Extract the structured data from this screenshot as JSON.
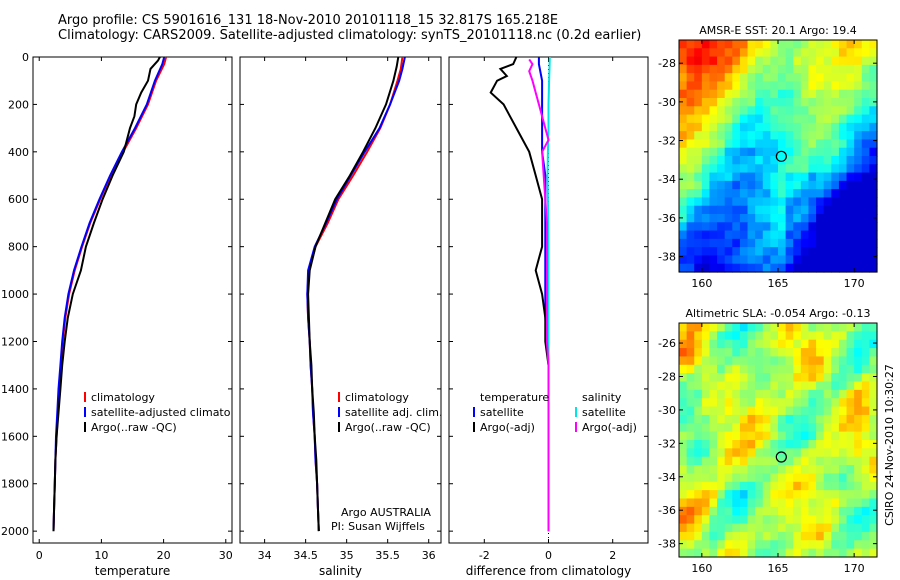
{
  "header": {
    "line1": "Argo profile: CS 5901616_131 18-Nov-2010 20101118_15 32.817S 165.218E",
    "line2": "Climatology: CARS2009. Satellite-adjusted climatology: synTS_20101118.nc (0.2d earlier)"
  },
  "side_label": "CSIRO 24-Nov-2010 10:30:27",
  "chart_data": [
    {
      "type": "line",
      "xlabel": "temperature",
      "xlim": [
        -1,
        31
      ],
      "ylim": [
        0,
        2050
      ],
      "xticks": [
        0,
        10,
        20,
        30
      ],
      "yticks": [
        0,
        200,
        400,
        600,
        800,
        1000,
        1200,
        1400,
        1600,
        1800,
        2000
      ],
      "legend": [
        "climatology",
        "satellite-adjusted climatology",
        "Argo(..raw -QC)"
      ],
      "series": [
        {
          "name": "climatology",
          "color": "#ff0000",
          "points": [
            [
              20.4,
              0
            ],
            [
              20.1,
              30
            ],
            [
              18.8,
              100
            ],
            [
              17.5,
              200
            ],
            [
              15.6,
              300
            ],
            [
              13.5,
              400
            ],
            [
              11.5,
              500
            ],
            [
              9.8,
              600
            ],
            [
              8.2,
              700
            ],
            [
              6.9,
              800
            ],
            [
              5.7,
              900
            ],
            [
              4.8,
              1000
            ],
            [
              4.2,
              1100
            ],
            [
              3.8,
              1200
            ],
            [
              3.5,
              1300
            ],
            [
              3.2,
              1400
            ],
            [
              3.0,
              1500
            ],
            [
              2.8,
              1600
            ],
            [
              2.6,
              1700
            ],
            [
              2.5,
              1800
            ],
            [
              2.4,
              1900
            ],
            [
              2.3,
              2000
            ]
          ]
        },
        {
          "name": "satellite-adjusted climatology",
          "color": "#0000ff",
          "points": [
            [
              20.1,
              0
            ],
            [
              19.8,
              30
            ],
            [
              18.6,
              100
            ],
            [
              17.3,
              200
            ],
            [
              15.4,
              300
            ],
            [
              13.3,
              400
            ],
            [
              11.4,
              500
            ],
            [
              9.7,
              600
            ],
            [
              8.1,
              700
            ],
            [
              6.8,
              800
            ],
            [
              5.6,
              900
            ],
            [
              4.7,
              1000
            ],
            [
              4.1,
              1100
            ],
            [
              3.7,
              1200
            ],
            [
              3.4,
              1300
            ],
            [
              3.1,
              1400
            ],
            [
              2.9,
              1500
            ],
            [
              2.7,
              1600
            ],
            [
              2.6,
              1700
            ],
            [
              2.5,
              1800
            ],
            [
              2.4,
              1900
            ],
            [
              2.3,
              2000
            ]
          ]
        },
        {
          "name": "Argo(..raw -QC)",
          "color": "#000000",
          "points": [
            [
              19.4,
              0
            ],
            [
              19.1,
              15
            ],
            [
              17.9,
              50
            ],
            [
              17.5,
              100
            ],
            [
              16.4,
              150
            ],
            [
              15.6,
              200
            ],
            [
              15.3,
              250
            ],
            [
              14.6,
              300
            ],
            [
              13.6,
              400
            ],
            [
              11.8,
              500
            ],
            [
              10.2,
              600
            ],
            [
              8.8,
              700
            ],
            [
              7.5,
              800
            ],
            [
              6.7,
              900
            ],
            [
              5.4,
              1000
            ],
            [
              4.6,
              1100
            ],
            [
              4.1,
              1200
            ],
            [
              3.7,
              1300
            ],
            [
              3.4,
              1400
            ],
            [
              3.1,
              1500
            ],
            [
              2.8,
              1600
            ],
            [
              2.6,
              1700
            ],
            [
              2.5,
              1800
            ],
            [
              2.4,
              1900
            ],
            [
              2.3,
              2000
            ]
          ]
        }
      ]
    },
    {
      "type": "line",
      "xlabel": "salinity",
      "xlim": [
        33.7,
        36.15
      ],
      "ylim": [
        0,
        2050
      ],
      "xticks": [
        34,
        34.5,
        35,
        35.5,
        36
      ],
      "legend": [
        "climatology",
        "satellite adj. clim.",
        "Argo(..raw -QC)"
      ],
      "annotation": [
        "Argo AUSTRALIA",
        "PI: Susan Wijffels"
      ],
      "series": [
        {
          "name": "climatology",
          "color": "#ff0000",
          "points": [
            [
              35.68,
              0
            ],
            [
              35.66,
              50
            ],
            [
              35.62,
              100
            ],
            [
              35.53,
              200
            ],
            [
              35.41,
              300
            ],
            [
              35.25,
              400
            ],
            [
              35.08,
              500
            ],
            [
              34.9,
              600
            ],
            [
              34.77,
              700
            ],
            [
              34.62,
              800
            ],
            [
              34.54,
              900
            ],
            [
              34.52,
              1000
            ],
            [
              34.53,
              1100
            ],
            [
              34.55,
              1200
            ],
            [
              34.56,
              1300
            ],
            [
              34.58,
              1400
            ],
            [
              34.59,
              1500
            ],
            [
              34.61,
              1600
            ],
            [
              34.62,
              1700
            ],
            [
              34.64,
              1800
            ],
            [
              34.65,
              1900
            ],
            [
              34.66,
              2000
            ]
          ]
        },
        {
          "name": "satellite adj. clim.",
          "color": "#0000ff",
          "points": [
            [
              35.71,
              0
            ],
            [
              35.68,
              50
            ],
            [
              35.64,
              100
            ],
            [
              35.53,
              200
            ],
            [
              35.4,
              300
            ],
            [
              35.22,
              400
            ],
            [
              35.05,
              500
            ],
            [
              34.88,
              600
            ],
            [
              34.75,
              700
            ],
            [
              34.61,
              800
            ],
            [
              34.53,
              900
            ],
            [
              34.52,
              1000
            ],
            [
              34.53,
              1100
            ],
            [
              34.55,
              1200
            ],
            [
              34.56,
              1300
            ],
            [
              34.58,
              1400
            ],
            [
              34.59,
              1500
            ],
            [
              34.61,
              1600
            ],
            [
              34.62,
              1700
            ],
            [
              34.64,
              1800
            ],
            [
              34.65,
              1900
            ],
            [
              34.66,
              2000
            ]
          ]
        },
        {
          "name": "Argo(..raw -QC)",
          "color": "#000000",
          "points": [
            [
              35.63,
              0
            ],
            [
              35.61,
              40
            ],
            [
              35.57,
              100
            ],
            [
              35.48,
              200
            ],
            [
              35.35,
              300
            ],
            [
              35.2,
              400
            ],
            [
              35.04,
              500
            ],
            [
              34.86,
              600
            ],
            [
              34.74,
              700
            ],
            [
              34.62,
              800
            ],
            [
              34.55,
              900
            ],
            [
              34.53,
              1000
            ],
            [
              34.54,
              1100
            ],
            [
              34.55,
              1200
            ],
            [
              34.57,
              1300
            ],
            [
              34.58,
              1400
            ],
            [
              34.6,
              1500
            ],
            [
              34.61,
              1600
            ],
            [
              34.63,
              1700
            ],
            [
              34.64,
              1800
            ],
            [
              34.65,
              1900
            ],
            [
              34.66,
              2000
            ]
          ]
        }
      ]
    },
    {
      "type": "line",
      "xlabel": "difference from climatology",
      "xlim": [
        -3.1,
        3.1
      ],
      "ylim": [
        0,
        2050
      ],
      "xticks": [
        -2,
        0,
        2
      ],
      "legend_left_title": "temperature",
      "legend_right_title": "salinity",
      "legend": [
        "satellite",
        "Argo(-adj)",
        "satellite",
        "Argo(-adj)"
      ],
      "series": [
        {
          "name": "satellite",
          "color": "#0000ff",
          "group": "temperature",
          "points": [
            [
              -0.3,
              0
            ],
            [
              -0.3,
              30
            ],
            [
              -0.2,
              100
            ],
            [
              -0.2,
              200
            ],
            [
              -0.2,
              300
            ],
            [
              -0.2,
              400
            ],
            [
              -0.1,
              500
            ],
            [
              -0.1,
              600
            ],
            [
              -0.1,
              700
            ],
            [
              -0.1,
              800
            ],
            [
              -0.1,
              900
            ],
            [
              -0.1,
              1000
            ],
            [
              -0.1,
              1100
            ],
            [
              -0.05,
              1200
            ],
            [
              0,
              1300
            ],
            [
              0,
              1400
            ],
            [
              0,
              1500
            ],
            [
              0,
              1600
            ],
            [
              0,
              1700
            ],
            [
              0,
              1800
            ],
            [
              0,
              1900
            ],
            [
              0,
              2000
            ]
          ]
        },
        {
          "name": "Argo(-adj)",
          "color": "#000000",
          "group": "temperature",
          "points": [
            [
              -1,
              0
            ],
            [
              -1.1,
              30
            ],
            [
              -1.5,
              50
            ],
            [
              -1.3,
              80
            ],
            [
              -1.6,
              100
            ],
            [
              -1.8,
              150
            ],
            [
              -1.4,
              200
            ],
            [
              -1.2,
              250
            ],
            [
              -1,
              300
            ],
            [
              -0.6,
              400
            ],
            [
              -0.4,
              500
            ],
            [
              -0.2,
              600
            ],
            [
              -0.2,
              700
            ],
            [
              -0.2,
              800
            ],
            [
              -0.3,
              850
            ],
            [
              -0.4,
              900
            ],
            [
              -0.3,
              950
            ],
            [
              -0.2,
              1000
            ],
            [
              -0.1,
              1100
            ],
            [
              -0.1,
              1200
            ],
            [
              0,
              1300
            ],
            [
              0,
              1400
            ],
            [
              0,
              1500
            ],
            [
              0,
              1600
            ],
            [
              0,
              1700
            ],
            [
              0,
              1800
            ],
            [
              0,
              1900
            ],
            [
              0,
              2000
            ]
          ]
        },
        {
          "name": "satellite",
          "color": "#00e5e5",
          "group": "salinity",
          "points": [
            [
              0.04,
              0
            ],
            [
              0.03,
              50
            ],
            [
              0.02,
              100
            ],
            [
              0,
              200
            ],
            [
              0,
              300
            ],
            [
              -0.02,
              400
            ],
            [
              -0.03,
              500
            ],
            [
              -0.02,
              600
            ],
            [
              -0.01,
              700
            ],
            [
              0,
              800
            ],
            [
              0,
              900
            ],
            [
              0,
              1000
            ],
            [
              0,
              1100
            ],
            [
              0,
              1200
            ],
            [
              0,
              1300
            ],
            [
              0,
              1400
            ],
            [
              0,
              1500
            ],
            [
              0,
              1600
            ],
            [
              0,
              1700
            ],
            [
              0,
              1800
            ],
            [
              0,
              1900
            ],
            [
              0,
              2000
            ]
          ]
        },
        {
          "name": "Argo(-adj)",
          "color": "#ff00ff",
          "group": "salinity",
          "points": [
            [
              -0.6,
              10
            ],
            [
              -0.5,
              30
            ],
            [
              -0.6,
              60
            ],
            [
              -0.5,
              100
            ],
            [
              -0.4,
              150
            ],
            [
              -0.3,
              200
            ],
            [
              -0.2,
              250
            ],
            [
              -0.1,
              300
            ],
            [
              0,
              350
            ],
            [
              -0.2,
              400
            ],
            [
              -0.15,
              500
            ],
            [
              -0.1,
              600
            ],
            [
              -0.05,
              700
            ],
            [
              -0.05,
              800
            ],
            [
              -0.05,
              900
            ],
            [
              -0.05,
              1000
            ],
            [
              -0.05,
              1100
            ],
            [
              -0.05,
              1200
            ],
            [
              0,
              1300
            ],
            [
              0,
              1400
            ],
            [
              0,
              1500
            ],
            [
              0,
              1600
            ],
            [
              0,
              1700
            ],
            [
              0,
              1800
            ],
            [
              0,
              1900
            ],
            [
              0,
              2000
            ]
          ]
        }
      ]
    },
    {
      "type": "heatmap",
      "title": "AMSR-E SST: 20.1  Argo: 19.4",
      "xlim": [
        158.5,
        171.5
      ],
      "ylim": [
        -38.8,
        -26.8
      ],
      "xticks": [
        160,
        165,
        170
      ],
      "yticks": [
        -28,
        -30,
        -32,
        -34,
        -36,
        -38
      ],
      "marker": [
        165.218,
        -32.817
      ]
    },
    {
      "type": "heatmap",
      "title": "Altimetric SLA: -0.054  Argo: -0.13",
      "xlim": [
        158.5,
        171.5
      ],
      "ylim": [
        -38.8,
        -24.8
      ],
      "xticks": [
        160,
        165,
        170
      ],
      "yticks": [
        -26,
        -28,
        -30,
        -32,
        -34,
        -36,
        -38
      ],
      "marker": [
        165.218,
        -32.817
      ]
    }
  ]
}
